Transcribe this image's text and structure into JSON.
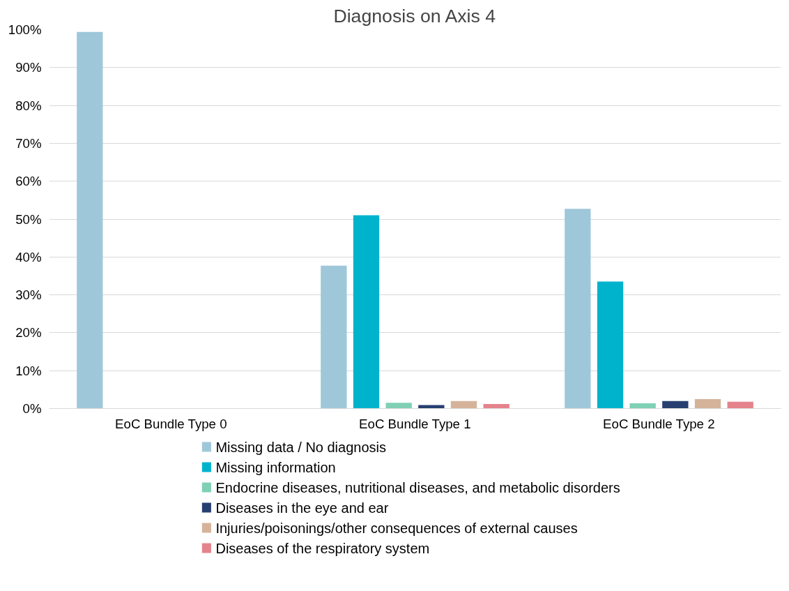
{
  "chart_data": {
    "type": "bar",
    "title": "Diagnosis on Axis 4",
    "categories": [
      "EoC Bundle Type 0",
      "EoC Bundle Type 1",
      "EoC Bundle Type 2"
    ],
    "series": [
      {
        "name": "Missing data / No diagnosis",
        "color": "#9fc7da",
        "values": [
          99.4,
          37.7,
          52.7
        ]
      },
      {
        "name": "Missing information",
        "color": "#00b3cc",
        "values": [
          0,
          51,
          33.5
        ]
      },
      {
        "name": "Endocrine diseases, nutritional diseases, and metabolic disorders",
        "color": "#7fd0b5",
        "values": [
          0,
          1.5,
          1.4
        ]
      },
      {
        "name": "Diseases in the eye and ear",
        "color": "#263f70",
        "values": [
          0,
          0.9,
          2.0
        ]
      },
      {
        "name": "Injuries/poisonings/other consequences of external causes",
        "color": "#d5b39a",
        "values": [
          0,
          2.0,
          2.5
        ]
      },
      {
        "name": "Diseases of the respiratory system",
        "color": "#e5838c",
        "values": [
          0,
          1.2,
          1.8
        ]
      }
    ],
    "ylim": [
      0,
      100
    ],
    "yticks": [
      {
        "value": 0,
        "label": "0%"
      },
      {
        "value": 10,
        "label": "10%"
      },
      {
        "value": 20,
        "label": "20%"
      },
      {
        "value": 30,
        "label": "30%"
      },
      {
        "value": 40,
        "label": "40%"
      },
      {
        "value": 50,
        "label": "50%"
      },
      {
        "value": 60,
        "label": "60%"
      },
      {
        "value": 70,
        "label": "70%"
      },
      {
        "value": 80,
        "label": "80%"
      },
      {
        "value": 90,
        "label": "90%"
      },
      {
        "value": 100,
        "label": "100%"
      }
    ],
    "grid": "y",
    "legend": "bottom"
  }
}
